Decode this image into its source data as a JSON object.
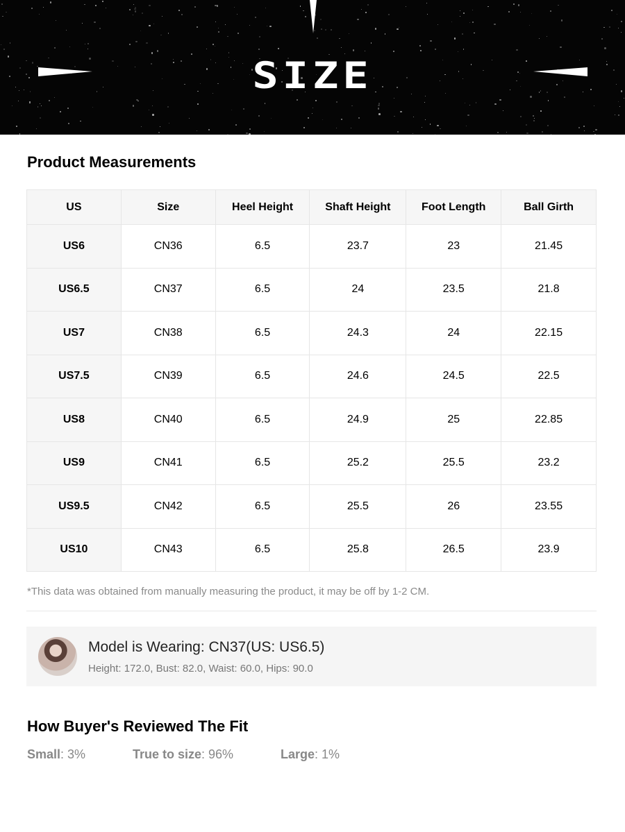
{
  "banner": {
    "title": "SIZE"
  },
  "measurements": {
    "title": "Product Measurements",
    "columns": [
      "US",
      "Size",
      "Heel Height",
      "Shaft Height",
      "Foot Length",
      "Ball Girth"
    ],
    "rows": [
      [
        "US6",
        "CN36",
        "6.5",
        "23.7",
        "23",
        "21.45"
      ],
      [
        "US6.5",
        "CN37",
        "6.5",
        "24",
        "23.5",
        "21.8"
      ],
      [
        "US7",
        "CN38",
        "6.5",
        "24.3",
        "24",
        "22.15"
      ],
      [
        "US7.5",
        "CN39",
        "6.5",
        "24.6",
        "24.5",
        "22.5"
      ],
      [
        "US8",
        "CN40",
        "6.5",
        "24.9",
        "25",
        "22.85"
      ],
      [
        "US9",
        "CN41",
        "6.5",
        "25.2",
        "25.5",
        "23.2"
      ],
      [
        "US9.5",
        "CN42",
        "6.5",
        "25.5",
        "26",
        "23.55"
      ],
      [
        "US10",
        "CN43",
        "6.5",
        "25.8",
        "26.5",
        "23.9"
      ]
    ],
    "note": "*This data was obtained from manually measuring the product, it may be off by 1-2 CM."
  },
  "model": {
    "title": "Model is Wearing: CN37(US: US6.5)",
    "measurements": "Height: 172.0, Bust: 82.0, Waist: 60.0, Hips: 90.0"
  },
  "fit": {
    "title": "How Buyer's Reviewed The Fit",
    "items": [
      {
        "label": "Small",
        "value": ": 3%"
      },
      {
        "label": "True to size",
        "value": ": 96%"
      },
      {
        "label": "Large",
        "value": ": 1%"
      }
    ]
  }
}
